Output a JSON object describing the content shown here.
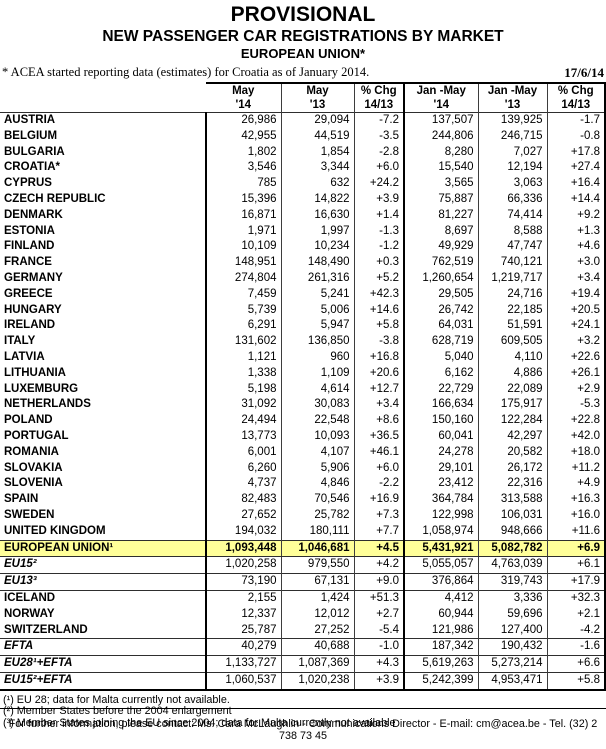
{
  "page": {
    "title": "PROVISIONAL",
    "subtitle": "NEW PASSENGER CAR REGISTRATIONS BY MARKET",
    "region": "EUROPEAN UNION*",
    "note": "* ACEA started reporting data (estimates) for Croatia as of January 2014.",
    "date": "17/6/14"
  },
  "table": {
    "columns": [
      {
        "line1": "May",
        "line2": "'14"
      },
      {
        "line1": "May",
        "line2": "'13"
      },
      {
        "line1": "% Chg",
        "line2": "14/13"
      },
      {
        "line1": "Jan -May",
        "line2": "'14"
      },
      {
        "line1": "Jan -May",
        "line2": "'13"
      },
      {
        "line1": "% Chg",
        "line2": "14/13"
      }
    ],
    "rows": [
      {
        "name": "AUSTRIA",
        "style": "country",
        "bt": true,
        "cells": [
          "26,986",
          "29,094",
          "-7.2",
          "137,507",
          "139,925",
          "-1.7"
        ]
      },
      {
        "name": "BELGIUM",
        "style": "country",
        "cells": [
          "42,955",
          "44,519",
          "-3.5",
          "244,806",
          "246,715",
          "-0.8"
        ]
      },
      {
        "name": "BULGARIA",
        "style": "country",
        "cells": [
          "1,802",
          "1,854",
          "-2.8",
          "8,280",
          "7,027",
          "+17.8"
        ]
      },
      {
        "name": "CROATIA*",
        "style": "country",
        "cells": [
          "3,546",
          "3,344",
          "+6.0",
          "15,540",
          "12,194",
          "+27.4"
        ]
      },
      {
        "name": "CYPRUS",
        "style": "country",
        "cells": [
          "785",
          "632",
          "+24.2",
          "3,565",
          "3,063",
          "+16.4"
        ]
      },
      {
        "name": "CZECH REPUBLIC",
        "style": "country",
        "cells": [
          "15,396",
          "14,822",
          "+3.9",
          "75,887",
          "66,336",
          "+14.4"
        ]
      },
      {
        "name": "DENMARK",
        "style": "country",
        "cells": [
          "16,871",
          "16,630",
          "+1.4",
          "81,227",
          "74,414",
          "+9.2"
        ]
      },
      {
        "name": "ESTONIA",
        "style": "country",
        "cells": [
          "1,971",
          "1,997",
          "-1.3",
          "8,697",
          "8,588",
          "+1.3"
        ]
      },
      {
        "name": "FINLAND",
        "style": "country",
        "cells": [
          "10,109",
          "10,234",
          "-1.2",
          "49,929",
          "47,747",
          "+4.6"
        ]
      },
      {
        "name": "FRANCE",
        "style": "country",
        "cells": [
          "148,951",
          "148,490",
          "+0.3",
          "762,519",
          "740,121",
          "+3.0"
        ]
      },
      {
        "name": "GERMANY",
        "style": "country",
        "cells": [
          "274,804",
          "261,316",
          "+5.2",
          "1,260,654",
          "1,219,717",
          "+3.4"
        ]
      },
      {
        "name": "GREECE",
        "style": "country",
        "cells": [
          "7,459",
          "5,241",
          "+42.3",
          "29,505",
          "24,716",
          "+19.4"
        ]
      },
      {
        "name": "HUNGARY",
        "style": "country",
        "cells": [
          "5,739",
          "5,006",
          "+14.6",
          "26,742",
          "22,185",
          "+20.5"
        ]
      },
      {
        "name": "IRELAND",
        "style": "country",
        "cells": [
          "6,291",
          "5,947",
          "+5.8",
          "64,031",
          "51,591",
          "+24.1"
        ]
      },
      {
        "name": "ITALY",
        "style": "country",
        "cells": [
          "131,602",
          "136,850",
          "-3.8",
          "628,719",
          "609,505",
          "+3.2"
        ]
      },
      {
        "name": "LATVIA",
        "style": "country",
        "cells": [
          "1,121",
          "960",
          "+16.8",
          "5,040",
          "4,110",
          "+22.6"
        ]
      },
      {
        "name": "LITHUANIA",
        "style": "country",
        "cells": [
          "1,338",
          "1,109",
          "+20.6",
          "6,162",
          "4,886",
          "+26.1"
        ]
      },
      {
        "name": "LUXEMBURG",
        "style": "country",
        "cells": [
          "5,198",
          "4,614",
          "+12.7",
          "22,729",
          "22,089",
          "+2.9"
        ]
      },
      {
        "name": "NETHERLANDS",
        "style": "country",
        "cells": [
          "31,092",
          "30,083",
          "+3.4",
          "166,634",
          "175,917",
          "-5.3"
        ]
      },
      {
        "name": "POLAND",
        "style": "country",
        "cells": [
          "24,494",
          "22,548",
          "+8.6",
          "150,160",
          "122,284",
          "+22.8"
        ]
      },
      {
        "name": "PORTUGAL",
        "style": "country",
        "cells": [
          "13,773",
          "10,093",
          "+36.5",
          "60,041",
          "42,297",
          "+42.0"
        ]
      },
      {
        "name": "ROMANIA",
        "style": "country",
        "cells": [
          "6,001",
          "4,107",
          "+46.1",
          "24,278",
          "20,582",
          "+18.0"
        ]
      },
      {
        "name": "SLOVAKIA",
        "style": "country",
        "cells": [
          "6,260",
          "5,906",
          "+6.0",
          "29,101",
          "26,172",
          "+11.2"
        ]
      },
      {
        "name": "SLOVENIA",
        "style": "country",
        "cells": [
          "4,737",
          "4,846",
          "-2.2",
          "23,412",
          "22,316",
          "+4.9"
        ]
      },
      {
        "name": "SPAIN",
        "style": "country",
        "cells": [
          "82,483",
          "70,546",
          "+16.9",
          "364,784",
          "313,588",
          "+16.3"
        ]
      },
      {
        "name": "SWEDEN",
        "style": "country",
        "cells": [
          "27,652",
          "25,782",
          "+7.3",
          "122,998",
          "106,031",
          "+16.0"
        ]
      },
      {
        "name": "UNITED KINGDOM",
        "style": "country",
        "cells": [
          "194,032",
          "180,111",
          "+7.7",
          "1,058,974",
          "948,666",
          "+11.6"
        ]
      },
      {
        "name": "EUROPEAN UNION¹",
        "style": "total",
        "bt": true,
        "bb": true,
        "cells": [
          "1,093,448",
          "1,046,681",
          "+4.5",
          "5,431,921",
          "5,082,782",
          "+6.9"
        ]
      },
      {
        "name": "EU15²",
        "style": "agg",
        "cells": [
          "1,020,258",
          "979,550",
          "+4.2",
          "5,055,057",
          "4,763,039",
          "+6.1"
        ]
      },
      {
        "name": "EU13³",
        "style": "agg",
        "bt": true,
        "cells": [
          "73,190",
          "67,131",
          "+9.0",
          "376,864",
          "319,743",
          "+17.9"
        ]
      },
      {
        "name": "ICELAND",
        "style": "country",
        "bt": true,
        "cells": [
          "2,155",
          "1,424",
          "+51.3",
          "4,412",
          "3,336",
          "+32.3"
        ]
      },
      {
        "name": "NORWAY",
        "style": "country",
        "cells": [
          "12,337",
          "12,012",
          "+2.7",
          "60,944",
          "59,696",
          "+2.1"
        ]
      },
      {
        "name": "SWITZERLAND",
        "style": "country",
        "cells": [
          "25,787",
          "27,252",
          "-5.4",
          "121,986",
          "127,400",
          "-4.2"
        ]
      },
      {
        "name": "EFTA",
        "style": "agg",
        "bt": true,
        "cells": [
          "40,279",
          "40,688",
          "-1.0",
          "187,342",
          "190,432",
          "-1.6"
        ]
      },
      {
        "name": "EU28¹+EFTA",
        "style": "agg",
        "bt": true,
        "cells": [
          "1,133,727",
          "1,087,369",
          "+4.3",
          "5,619,263",
          "5,273,214",
          "+6.6"
        ]
      },
      {
        "name": "EU15²+EFTA",
        "style": "agg",
        "bt": true,
        "tb": true,
        "cells": [
          "1,060,537",
          "1,020,238",
          "+3.9",
          "5,242,399",
          "4,953,471",
          "+5.8"
        ]
      }
    ]
  },
  "footnotes": [
    "(¹) EU 28; data for Malta currently not available.",
    "(²) Member States before the 2004 enlargement",
    "(³) Member States joining the EU since 2004; data for Malta currently not available"
  ],
  "footer": {
    "contact": "For further information, please contact:  Ms. Cara McLaughlin - Communications Director  - E-mail: cm@acea.be - Tel. (32) 2 738 73 45"
  },
  "colors": {
    "highlight_yellow": "#FFFF99",
    "border_black": "#000000"
  }
}
